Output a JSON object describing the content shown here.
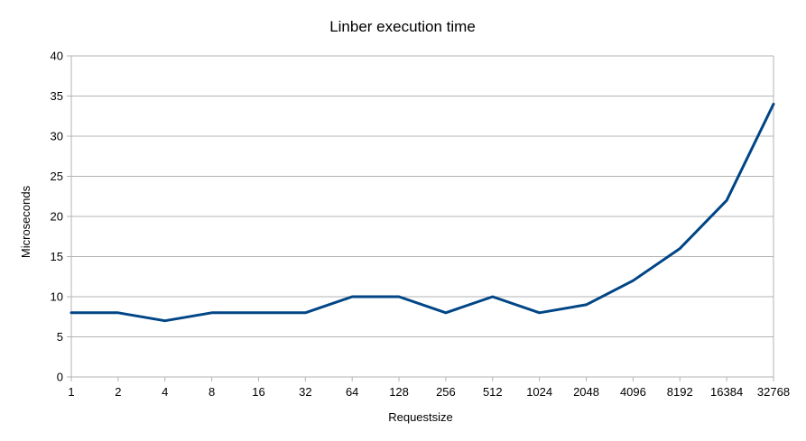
{
  "chart_data": {
    "type": "line",
    "title": "Linber execution time",
    "xlabel": "Requestsize",
    "ylabel": "Microseconds",
    "categories": [
      "1",
      "2",
      "4",
      "8",
      "16",
      "32",
      "64",
      "128",
      "256",
      "512",
      "1024",
      "2048",
      "4096",
      "8192",
      "16384",
      "32768"
    ],
    "series": [
      {
        "values": [
          8,
          8,
          7,
          8,
          8,
          8,
          10,
          10,
          8,
          10,
          8,
          9,
          12,
          16,
          22,
          34
        ]
      }
    ],
    "ylim": [
      0,
      40
    ],
    "yticks": [
      "0",
      "5",
      "10",
      "15",
      "20",
      "25",
      "30",
      "35",
      "40"
    ],
    "grid": true,
    "legend": "none",
    "colors": {
      "line": "#004586",
      "grid": "#b3b3b3",
      "axis": "#b3b3b3"
    }
  }
}
